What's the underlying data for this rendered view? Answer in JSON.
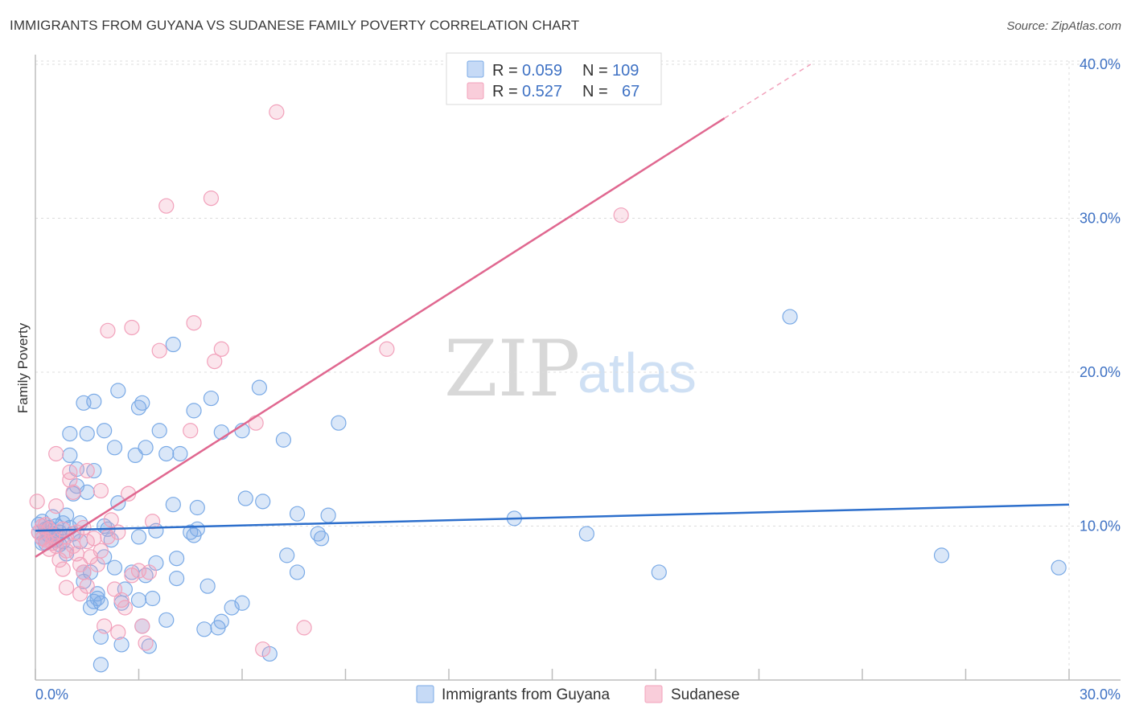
{
  "header": {
    "title": "IMMIGRANTS FROM GUYANA VS SUDANESE FAMILY POVERTY CORRELATION CHART",
    "source": "Source: ZipAtlas.com"
  },
  "watermark": {
    "zip": "ZIP",
    "atlas": "atlas"
  },
  "legend_box": {
    "rows": [
      {
        "r_label": "R = ",
        "r_value": "0.059",
        "n_label": "N = ",
        "n_value": "109",
        "color": "#7aaae6"
      },
      {
        "r_label": "R = ",
        "r_value": "0.527",
        "n_label": "N = ",
        "n_value": "67",
        "color": "#f2a1bb"
      }
    ]
  },
  "chart_data": {
    "type": "scatter",
    "title": "IMMIGRANTS FROM GUYANA VS SUDANESE FAMILY POVERTY CORRELATION CHART",
    "xlabel": "",
    "ylabel": "Family Poverty",
    "xlim": [
      0,
      30
    ],
    "ylim": [
      0,
      40
    ],
    "x_tick_labels": [
      "0.0%",
      "30.0%"
    ],
    "y_tick_values": [
      10,
      20,
      30,
      40
    ],
    "y_tick_labels": [
      "10.0%",
      "20.0%",
      "30.0%",
      "40.0%"
    ],
    "grid": true,
    "legend_position": "bottom",
    "series": [
      {
        "name": "Immigrants from Guyana",
        "color": "#7aaae6",
        "trend_color": "#2d6fcc",
        "trend": {
          "x": [
            0,
            30
          ],
          "y": [
            9.7,
            11.4
          ]
        },
        "points": [
          [
            0.1,
            10.1
          ],
          [
            0.1,
            9.6
          ],
          [
            0.2,
            9.2
          ],
          [
            0.2,
            10.3
          ],
          [
            0.3,
            9.8
          ],
          [
            0.3,
            8.9
          ],
          [
            0.4,
            9.4
          ],
          [
            0.4,
            9.9
          ],
          [
            0.5,
            9.5
          ],
          [
            0.5,
            10.6
          ],
          [
            0.6,
            9.1
          ],
          [
            0.6,
            10.0
          ],
          [
            0.7,
            8.8
          ],
          [
            0.7,
            9.6
          ],
          [
            0.8,
            10.2
          ],
          [
            0.8,
            9.0
          ],
          [
            0.9,
            10.7
          ],
          [
            0.9,
            8.2
          ],
          [
            1.0,
            16.0
          ],
          [
            1.0,
            14.6
          ],
          [
            1.1,
            12.1
          ],
          [
            1.1,
            9.5
          ],
          [
            1.2,
            13.7
          ],
          [
            1.2,
            12.6
          ],
          [
            1.3,
            10.2
          ],
          [
            1.3,
            9.0
          ],
          [
            1.4,
            7.0
          ],
          [
            1.4,
            6.4
          ],
          [
            1.4,
            18.0
          ],
          [
            1.5,
            16.0
          ],
          [
            1.5,
            12.2
          ],
          [
            1.6,
            7.0
          ],
          [
            1.6,
            4.7
          ],
          [
            1.7,
            5.1
          ],
          [
            1.7,
            18.1
          ],
          [
            1.7,
            13.6
          ],
          [
            1.8,
            5.6
          ],
          [
            1.8,
            5.3
          ],
          [
            1.9,
            5.0
          ],
          [
            1.9,
            1.0
          ],
          [
            1.9,
            2.8
          ],
          [
            2.0,
            8.0
          ],
          [
            2.0,
            16.2
          ],
          [
            2.1,
            9.8
          ],
          [
            2.2,
            9.1
          ],
          [
            2.3,
            15.1
          ],
          [
            2.3,
            7.3
          ],
          [
            2.4,
            11.5
          ],
          [
            2.4,
            18.8
          ],
          [
            2.5,
            2.3
          ],
          [
            2.5,
            5.0
          ],
          [
            2.6,
            5.9
          ],
          [
            2.8,
            7.0
          ],
          [
            2.9,
            14.6
          ],
          [
            3.0,
            17.7
          ],
          [
            3.0,
            5.2
          ],
          [
            3.0,
            9.3
          ],
          [
            3.1,
            3.5
          ],
          [
            3.1,
            18.0
          ],
          [
            3.2,
            15.1
          ],
          [
            3.2,
            6.8
          ],
          [
            3.3,
            2.2
          ],
          [
            3.4,
            5.3
          ],
          [
            3.5,
            9.7
          ],
          [
            3.5,
            7.6
          ],
          [
            3.6,
            16.2
          ],
          [
            3.8,
            3.9
          ],
          [
            3.8,
            14.7
          ],
          [
            4.0,
            11.4
          ],
          [
            4.0,
            21.8
          ],
          [
            4.1,
            7.9
          ],
          [
            4.1,
            6.6
          ],
          [
            4.2,
            14.7
          ],
          [
            4.5,
            9.6
          ],
          [
            4.6,
            17.5
          ],
          [
            4.6,
            9.4
          ],
          [
            4.7,
            11.2
          ],
          [
            4.7,
            9.8
          ],
          [
            4.9,
            3.3
          ],
          [
            5.0,
            6.1
          ],
          [
            5.1,
            18.3
          ],
          [
            5.3,
            3.4
          ],
          [
            5.4,
            3.8
          ],
          [
            5.4,
            16.1
          ],
          [
            5.7,
            4.7
          ],
          [
            6.0,
            5.0
          ],
          [
            6.0,
            16.2
          ],
          [
            6.1,
            11.8
          ],
          [
            6.5,
            19.0
          ],
          [
            6.6,
            11.6
          ],
          [
            6.8,
            1.7
          ],
          [
            7.2,
            15.6
          ],
          [
            7.3,
            8.1
          ],
          [
            7.6,
            7.0
          ],
          [
            7.6,
            10.8
          ],
          [
            8.2,
            9.5
          ],
          [
            8.3,
            9.2
          ],
          [
            8.5,
            10.7
          ],
          [
            8.8,
            16.7
          ],
          [
            13.9,
            10.5
          ],
          [
            16.0,
            9.5
          ],
          [
            18.1,
            7.0
          ],
          [
            21.9,
            23.6
          ],
          [
            26.3,
            8.1
          ],
          [
            29.7,
            7.3
          ],
          [
            0.2,
            8.9
          ],
          [
            0.6,
            9.4
          ],
          [
            1.0,
            9.9
          ],
          [
            2.0,
            10.0
          ]
        ]
      },
      {
        "name": "Sudanese",
        "color": "#f2a1bb",
        "trend_color": "#e06890",
        "trend": {
          "x": [
            0,
            20
          ],
          "y": [
            8.0,
            36.5
          ]
        },
        "trend_dashed": {
          "x": [
            20,
            22.5
          ],
          "y": [
            36.5,
            40.0
          ]
        },
        "points": [
          [
            0.05,
            11.6
          ],
          [
            0.1,
            9.6
          ],
          [
            0.2,
            10.0
          ],
          [
            0.3,
            9.1
          ],
          [
            0.4,
            8.5
          ],
          [
            0.4,
            9.8
          ],
          [
            0.5,
            9.4
          ],
          [
            0.6,
            8.7
          ],
          [
            0.6,
            11.3
          ],
          [
            0.6,
            14.7
          ],
          [
            0.7,
            7.8
          ],
          [
            0.8,
            7.2
          ],
          [
            0.8,
            9.8
          ],
          [
            0.9,
            6.0
          ],
          [
            0.9,
            8.4
          ],
          [
            1.0,
            13.5
          ],
          [
            1.0,
            13.0
          ],
          [
            1.1,
            12.2
          ],
          [
            1.2,
            8.2
          ],
          [
            1.2,
            9.6
          ],
          [
            1.3,
            5.6
          ],
          [
            1.3,
            7.5
          ],
          [
            1.4,
            9.9
          ],
          [
            1.4,
            7.0
          ],
          [
            1.5,
            6.1
          ],
          [
            1.5,
            13.6
          ],
          [
            1.6,
            8.0
          ],
          [
            1.7,
            9.2
          ],
          [
            1.8,
            7.5
          ],
          [
            1.9,
            12.3
          ],
          [
            1.9,
            8.4
          ],
          [
            2.0,
            3.5
          ],
          [
            2.1,
            22.7
          ],
          [
            2.1,
            9.3
          ],
          [
            2.2,
            10.4
          ],
          [
            2.3,
            5.9
          ],
          [
            2.4,
            3.1
          ],
          [
            2.4,
            9.6
          ],
          [
            2.5,
            5.2
          ],
          [
            2.6,
            4.7
          ],
          [
            2.7,
            12.1
          ],
          [
            2.8,
            6.8
          ],
          [
            2.8,
            22.9
          ],
          [
            3.0,
            7.1
          ],
          [
            3.1,
            3.5
          ],
          [
            3.2,
            2.4
          ],
          [
            3.3,
            7.0
          ],
          [
            3.4,
            10.3
          ],
          [
            3.6,
            21.4
          ],
          [
            3.8,
            30.8
          ],
          [
            4.5,
            16.2
          ],
          [
            4.6,
            23.2
          ],
          [
            5.1,
            31.3
          ],
          [
            5.2,
            20.7
          ],
          [
            5.4,
            21.5
          ],
          [
            6.4,
            16.7
          ],
          [
            6.6,
            2.0
          ],
          [
            7.0,
            36.9
          ],
          [
            7.8,
            3.4
          ],
          [
            10.2,
            21.5
          ],
          [
            17.0,
            30.2
          ],
          [
            0.2,
            9.2
          ],
          [
            0.3,
            10.1
          ],
          [
            0.5,
            8.9
          ],
          [
            0.9,
            9.3
          ],
          [
            1.1,
            8.7
          ],
          [
            1.5,
            9.0
          ]
        ]
      }
    ]
  }
}
